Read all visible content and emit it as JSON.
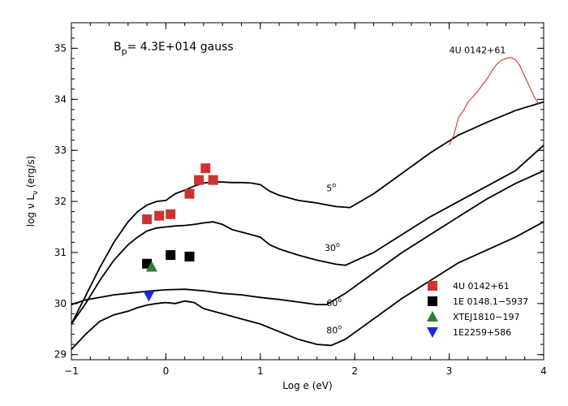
{
  "chart_data": {
    "type": "scatter",
    "title": "",
    "annotation_field": "B_p= 4.3E+014 gauss",
    "annotation_field_parts": {
      "b": "B",
      "sub": "p",
      "rest": "= 4.3E+014 gauss"
    },
    "xlabel": "Log e (eV)",
    "ylabel_parts": {
      "pre": "log ν L",
      "sub": "ν",
      "post": " (erg/s)"
    },
    "xlim": [
      -1,
      4
    ],
    "ylim": [
      28.9,
      35.5
    ],
    "xticks": [
      -1,
      0,
      1,
      2,
      3,
      4
    ],
    "yticks": [
      29,
      30,
      31,
      32,
      33,
      34,
      35
    ],
    "xticklabels": [
      "−1",
      "0",
      "1",
      "2",
      "3",
      "4"
    ],
    "yticklabels": [
      "29",
      "30",
      "31",
      "32",
      "33",
      "34",
      "35"
    ],
    "grid": false,
    "legend_position": "bottom-right",
    "model_curves": [
      {
        "label": "5",
        "deg": "o",
        "color": "#000000",
        "x": [
          -1.0,
          -0.85,
          -0.7,
          -0.55,
          -0.4,
          -0.3,
          -0.2,
          -0.1,
          0.0,
          0.1,
          0.2,
          0.3,
          0.4,
          0.5,
          0.6,
          0.7,
          0.8,
          0.9,
          1.0,
          1.1,
          1.2,
          1.4,
          1.6,
          1.8,
          1.95,
          2.2,
          2.5,
          2.8,
          3.1,
          3.4,
          3.7,
          4.0
        ],
        "y": [
          29.6,
          30.15,
          30.7,
          31.2,
          31.6,
          31.8,
          31.93,
          32.0,
          32.02,
          32.15,
          32.22,
          32.3,
          32.36,
          32.38,
          32.38,
          32.37,
          32.37,
          32.36,
          32.33,
          32.2,
          32.12,
          32.02,
          31.97,
          31.9,
          31.88,
          32.15,
          32.55,
          32.95,
          33.3,
          33.55,
          33.78,
          33.95
        ]
      },
      {
        "label": "30",
        "deg": "o",
        "color": "#000000",
        "x": [
          -1.0,
          -0.85,
          -0.7,
          -0.55,
          -0.4,
          -0.3,
          -0.2,
          -0.1,
          0.0,
          0.1,
          0.2,
          0.3,
          0.4,
          0.5,
          0.6,
          0.7,
          0.8,
          0.9,
          1.0,
          1.1,
          1.2,
          1.4,
          1.6,
          1.8,
          1.9,
          2.2,
          2.5,
          2.8,
          3.1,
          3.4,
          3.7,
          4.0
        ],
        "y": [
          29.6,
          30.0,
          30.45,
          30.85,
          31.15,
          31.3,
          31.42,
          31.48,
          31.5,
          31.52,
          31.53,
          31.55,
          31.58,
          31.6,
          31.55,
          31.45,
          31.4,
          31.35,
          31.3,
          31.15,
          31.07,
          30.95,
          30.85,
          30.77,
          30.75,
          31.0,
          31.35,
          31.7,
          32.0,
          32.3,
          32.6,
          33.1
        ]
      },
      {
        "label": "60",
        "deg": "o",
        "color": "#000000",
        "x": [
          -1.0,
          -0.85,
          -0.7,
          -0.55,
          -0.4,
          -0.2,
          0.0,
          0.2,
          0.4,
          0.6,
          0.8,
          1.0,
          1.2,
          1.4,
          1.6,
          1.7,
          1.9,
          2.2,
          2.5,
          2.8,
          3.1,
          3.4,
          3.7,
          4.0
        ],
        "y": [
          29.98,
          30.07,
          30.12,
          30.17,
          30.2,
          30.24,
          30.27,
          30.28,
          30.25,
          30.2,
          30.17,
          30.12,
          30.08,
          30.03,
          29.98,
          29.98,
          30.2,
          30.6,
          31.0,
          31.35,
          31.7,
          32.05,
          32.35,
          32.6
        ]
      },
      {
        "label": "80",
        "deg": "o",
        "color": "#000000",
        "x": [
          -1.0,
          -0.85,
          -0.7,
          -0.55,
          -0.4,
          -0.3,
          -0.2,
          -0.1,
          0.0,
          0.1,
          0.2,
          0.3,
          0.4,
          0.6,
          0.8,
          1.0,
          1.2,
          1.4,
          1.6,
          1.75,
          1.9,
          2.2,
          2.5,
          2.8,
          3.1,
          3.4,
          3.7,
          4.0
        ],
        "y": [
          29.1,
          29.4,
          29.65,
          29.78,
          29.85,
          29.92,
          29.97,
          30.0,
          30.02,
          30.0,
          30.05,
          30.02,
          29.9,
          29.8,
          29.7,
          29.6,
          29.45,
          29.3,
          29.2,
          29.18,
          29.3,
          29.7,
          30.1,
          30.45,
          30.8,
          31.05,
          31.3,
          31.6
        ]
      }
    ],
    "observed_spectrum": {
      "label": "4U 0142+61",
      "color": "#cc2222",
      "x": [
        3.0,
        3.05,
        3.1,
        3.15,
        3.2,
        3.25,
        3.3,
        3.35,
        3.4,
        3.45,
        3.5,
        3.55,
        3.6,
        3.65,
        3.7,
        3.75,
        3.8,
        3.85,
        3.9,
        3.95
      ],
      "y": [
        33.1,
        33.3,
        33.65,
        33.78,
        33.95,
        34.05,
        34.15,
        34.28,
        34.4,
        34.55,
        34.68,
        34.76,
        34.8,
        34.82,
        34.78,
        34.65,
        34.45,
        34.25,
        34.05,
        33.9
      ]
    },
    "series": [
      {
        "name": "4U 0142+61",
        "color": "#cc3333",
        "marker": "square",
        "x": [
          -0.2,
          -0.07,
          0.05,
          0.25,
          0.35,
          0.42,
          0.5
        ],
        "y": [
          31.65,
          31.72,
          31.75,
          32.15,
          32.42,
          32.65,
          32.42
        ]
      },
      {
        "name": "1E 0148.1−5937",
        "color": "#000000",
        "marker": "square",
        "x": [
          -0.2,
          0.05,
          0.25
        ],
        "y": [
          30.78,
          30.95,
          30.92
        ]
      },
      {
        "name": "XTEJ1810−197",
        "color": "#2f7f2f",
        "marker": "triangle-up",
        "x": [
          -0.15
        ],
        "y": [
          30.72
        ]
      },
      {
        "name": "1E2259+586",
        "color": "#1a2bd6",
        "marker": "triangle-down",
        "x": [
          -0.18
        ],
        "y": [
          30.15
        ]
      }
    ]
  }
}
